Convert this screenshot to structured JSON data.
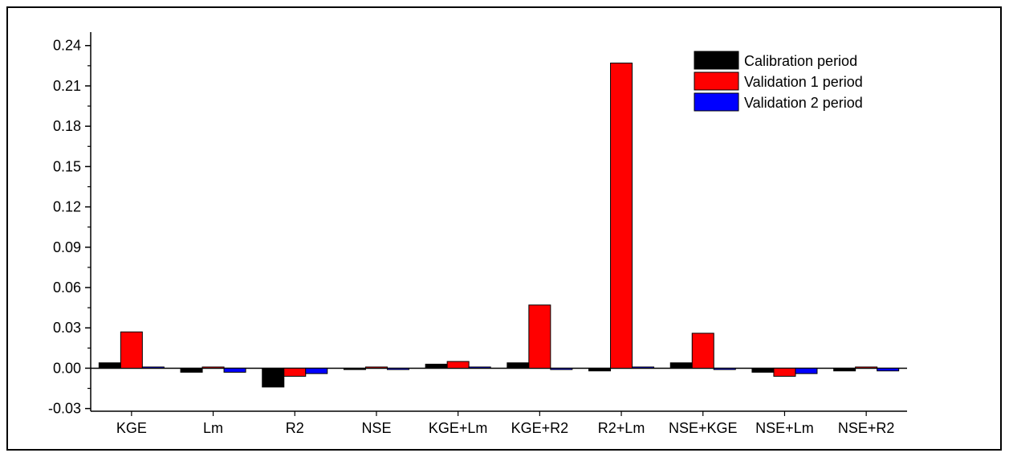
{
  "chart_data": {
    "type": "bar",
    "categories": [
      "KGE",
      "Lm",
      "R2",
      "NSE",
      "KGE+Lm",
      "KGE+R2",
      "R2+Lm",
      "NSE+KGE",
      "NSE+Lm",
      "NSE+R2"
    ],
    "series": [
      {
        "name": "Calibration period",
        "color": "#000000",
        "values": [
          0.004,
          -0.003,
          -0.014,
          -0.001,
          0.003,
          0.004,
          -0.002,
          0.004,
          -0.003,
          -0.002
        ]
      },
      {
        "name": "Validation 1 period",
        "color": "#ff0000",
        "values": [
          0.027,
          0.0,
          -0.006,
          0.0,
          0.005,
          0.047,
          0.227,
          0.026,
          -0.006,
          0.0
        ]
      },
      {
        "name": "Validation 2 period",
        "color": "#0000ff",
        "values": [
          0.0,
          -0.003,
          -0.004,
          -0.001,
          0.0,
          -0.001,
          0.0,
          -0.001,
          -0.004,
          -0.002
        ]
      }
    ],
    "yticks": [
      -0.03,
      0.0,
      0.03,
      0.06,
      0.09,
      0.12,
      0.15,
      0.18,
      0.21,
      0.24
    ],
    "ytick_labels": [
      "-0.03",
      "0.00",
      "0.03",
      "0.06",
      "0.09",
      "0.12",
      "0.15",
      "0.18",
      "0.21",
      "0.24"
    ],
    "ylim": [
      -0.032,
      0.25
    ],
    "title": "",
    "xlabel": "",
    "ylabel": "",
    "legend_position": "top-right",
    "grid": false
  }
}
